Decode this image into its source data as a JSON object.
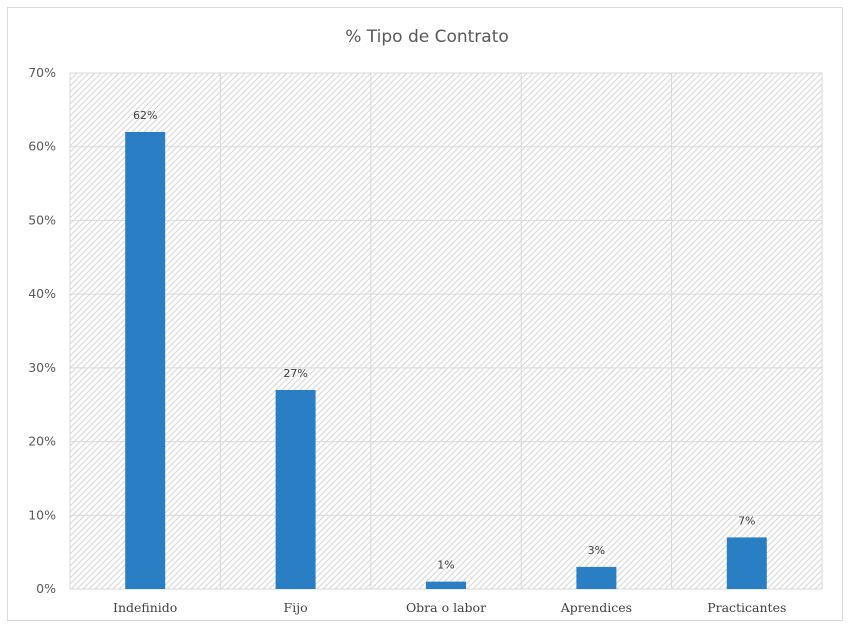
{
  "chart_data": {
    "type": "bar",
    "title": "% Tipo de Contrato",
    "categories": [
      "Indefinido",
      "Fijo",
      "Obra o labor",
      "Aprendices",
      "Practicantes"
    ],
    "values": [
      62,
      27,
      1,
      3,
      7
    ],
    "data_labels": [
      "62%",
      "27%",
      "1%",
      "3%",
      "7%"
    ],
    "ylim": [
      0,
      70
    ],
    "yticks": [
      0,
      10,
      20,
      30,
      40,
      50,
      60,
      70
    ],
    "ytick_labels": [
      "0%",
      "10%",
      "20%",
      "30%",
      "40%",
      "50%",
      "60%",
      "70%"
    ],
    "xlabel": "",
    "ylabel": "",
    "grid": true,
    "legend": "none",
    "colors": {
      "bar": "#2a7fc4",
      "grid": "#d9d9d9",
      "hatch": "#d6d6d6",
      "text": "#595959"
    }
  }
}
